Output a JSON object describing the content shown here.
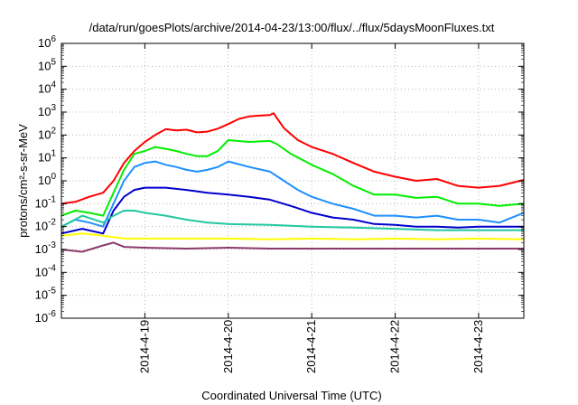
{
  "chart_data": {
    "type": "line",
    "title": "/data/run/goesPlots/archive/2014-04-23/13:00/flux/../flux/5daysMoonFluxes.txt",
    "xlabel": "Coordinated Universal Time (UTC)",
    "ylabel": "protons/cm²-s-sr-MeV",
    "y_scale": "log",
    "ylim": [
      "1e-6",
      "1e6"
    ],
    "y_ticks": [
      {
        "value": "1e-6",
        "base": "10",
        "exp": "-6"
      },
      {
        "value": "1e-5",
        "base": "10",
        "exp": "-5"
      },
      {
        "value": "1e-4",
        "base": "10",
        "exp": "-4"
      },
      {
        "value": "1e-3",
        "base": "10",
        "exp": "-3"
      },
      {
        "value": "1e-2",
        "base": "10",
        "exp": "-2"
      },
      {
        "value": "1e-1",
        "base": "10",
        "exp": "-1"
      },
      {
        "value": "1e0",
        "base": "10",
        "exp": "0"
      },
      {
        "value": "1e1",
        "base": "10",
        "exp": "1"
      },
      {
        "value": "1e2",
        "base": "10",
        "exp": "2"
      },
      {
        "value": "1e3",
        "base": "10",
        "exp": "3"
      },
      {
        "value": "1e4",
        "base": "10",
        "exp": "4"
      },
      {
        "value": "1e5",
        "base": "10",
        "exp": "5"
      },
      {
        "value": "1e6",
        "base": "10",
        "exp": "6"
      }
    ],
    "xlim": [
      "2014-04-18 00:00",
      "2014-04-23 13:00"
    ],
    "x_ticks": [
      "2014-4-19",
      "2014-4-20",
      "2014-4-21",
      "2014-4-22",
      "2014-4-23"
    ],
    "grid": true,
    "series": [
      {
        "color": "#ff0000",
        "points": [
          [
            "2014-04-18 00:00",
            "1e-1"
          ],
          [
            "2014-04-18 04:00",
            "1.2e-1"
          ],
          [
            "2014-04-18 08:00",
            "2e-1"
          ],
          [
            "2014-04-18 12:00",
            "3e-1"
          ],
          [
            "2014-04-18 15:00",
            "1e0"
          ],
          [
            "2014-04-18 18:00",
            "6e0"
          ],
          [
            "2014-04-18 21:00",
            "2e1"
          ],
          [
            "2014-04-19 00:00",
            "5e1"
          ],
          [
            "2014-04-19 03:00",
            "1e2"
          ],
          [
            "2014-04-19 06:00",
            "1.8e2"
          ],
          [
            "2014-04-19 09:00",
            "1.6e2"
          ],
          [
            "2014-04-19 12:00",
            "1.7e2"
          ],
          [
            "2014-04-19 15:00",
            "1.3e2"
          ],
          [
            "2014-04-19 18:00",
            "1.4e2"
          ],
          [
            "2014-04-19 21:00",
            "1.9e2"
          ],
          [
            "2014-04-20 00:00",
            "3e2"
          ],
          [
            "2014-04-20 03:00",
            "5e2"
          ],
          [
            "2014-04-20 06:00",
            "6.5e2"
          ],
          [
            "2014-04-20 09:00",
            "7e2"
          ],
          [
            "2014-04-20 12:00",
            "7.5e2"
          ],
          [
            "2014-04-20 13:00",
            "9e2"
          ],
          [
            "2014-04-20 16:00",
            "2e2"
          ],
          [
            "2014-04-20 20:00",
            "6e1"
          ],
          [
            "2014-04-21 00:00",
            "3e1"
          ],
          [
            "2014-04-21 06:00",
            "1.5e1"
          ],
          [
            "2014-04-21 12:00",
            "6e0"
          ],
          [
            "2014-04-21 18:00",
            "2.5e0"
          ],
          [
            "2014-04-22 00:00",
            "1.5e0"
          ],
          [
            "2014-04-22 06:00",
            "1e0"
          ],
          [
            "2014-04-22 12:00",
            "1.2e0"
          ],
          [
            "2014-04-22 18:00",
            "6e-1"
          ],
          [
            "2014-04-23 00:00",
            "5e-1"
          ],
          [
            "2014-04-23 06:00",
            "6e-1"
          ],
          [
            "2014-04-23 13:00",
            "1.1e0"
          ]
        ]
      },
      {
        "color": "#00ee00",
        "points": [
          [
            "2014-04-18 00:00",
            "3e-2"
          ],
          [
            "2014-04-18 04:00",
            "5e-2"
          ],
          [
            "2014-04-18 08:00",
            "4e-2"
          ],
          [
            "2014-04-18 12:00",
            "3e-2"
          ],
          [
            "2014-04-18 15:00",
            "3e-1"
          ],
          [
            "2014-04-18 18:00",
            "3e0"
          ],
          [
            "2014-04-18 21:00",
            "1.5e1"
          ],
          [
            "2014-04-19 00:00",
            "2e1"
          ],
          [
            "2014-04-19 03:00",
            "3e1"
          ],
          [
            "2014-04-19 06:00",
            "2.5e1"
          ],
          [
            "2014-04-19 09:00",
            "2e1"
          ],
          [
            "2014-04-19 12:00",
            "1.5e1"
          ],
          [
            "2014-04-19 15:00",
            "1.2e1"
          ],
          [
            "2014-04-19 18:00",
            "1.2e1"
          ],
          [
            "2014-04-19 21:00",
            "2e1"
          ],
          [
            "2014-04-20 00:00",
            "6e1"
          ],
          [
            "2014-04-20 06:00",
            "5e1"
          ],
          [
            "2014-04-20 12:00",
            "5.5e1"
          ],
          [
            "2014-04-20 14:00",
            "4e1"
          ],
          [
            "2014-04-20 18:00",
            "1.5e1"
          ],
          [
            "2014-04-21 00:00",
            "5e0"
          ],
          [
            "2014-04-21 06:00",
            "2e0"
          ],
          [
            "2014-04-21 12:00",
            "6e-1"
          ],
          [
            "2014-04-21 18:00",
            "2.5e-1"
          ],
          [
            "2014-04-22 00:00",
            "2.5e-1"
          ],
          [
            "2014-04-22 06:00",
            "1.8e-1"
          ],
          [
            "2014-04-22 12:00",
            "2e-1"
          ],
          [
            "2014-04-22 18:00",
            "1e-1"
          ],
          [
            "2014-04-23 00:00",
            "1e-1"
          ],
          [
            "2014-04-23 06:00",
            "8e-2"
          ],
          [
            "2014-04-23 13:00",
            "1e-1"
          ]
        ]
      },
      {
        "color": "#1e90ff",
        "points": [
          [
            "2014-04-18 00:00",
            "1e-2"
          ],
          [
            "2014-04-18 04:00",
            "2e-2"
          ],
          [
            "2014-04-18 08:00",
            "1.5e-2"
          ],
          [
            "2014-04-18 12:00",
            "1e-2"
          ],
          [
            "2014-04-18 15:00",
            "1e-1"
          ],
          [
            "2014-04-18 18:00",
            "1e0"
          ],
          [
            "2014-04-18 21:00",
            "4e0"
          ],
          [
            "2014-04-19 00:00",
            "6e0"
          ],
          [
            "2014-04-19 03:00",
            "7e0"
          ],
          [
            "2014-04-19 06:00",
            "5e0"
          ],
          [
            "2014-04-19 09:00",
            "4e0"
          ],
          [
            "2014-04-19 12:00",
            "3e0"
          ],
          [
            "2014-04-19 15:00",
            "2.5e0"
          ],
          [
            "2014-04-19 18:00",
            "3e0"
          ],
          [
            "2014-04-19 21:00",
            "4e0"
          ],
          [
            "2014-04-20 00:00",
            "7e0"
          ],
          [
            "2014-04-20 06:00",
            "4e0"
          ],
          [
            "2014-04-20 12:00",
            "2.5e0"
          ],
          [
            "2014-04-20 16:00",
            "1e0"
          ],
          [
            "2014-04-20 20:00",
            "4e-1"
          ],
          [
            "2014-04-21 00:00",
            "2e-1"
          ],
          [
            "2014-04-21 06:00",
            "1e-1"
          ],
          [
            "2014-04-21 12:00",
            "6e-2"
          ],
          [
            "2014-04-21 18:00",
            "3e-2"
          ],
          [
            "2014-04-22 00:00",
            "3e-2"
          ],
          [
            "2014-04-22 06:00",
            "2.5e-2"
          ],
          [
            "2014-04-22 12:00",
            "3e-2"
          ],
          [
            "2014-04-22 18:00",
            "2e-2"
          ],
          [
            "2014-04-23 00:00",
            "2e-2"
          ],
          [
            "2014-04-23 06:00",
            "1.5e-2"
          ],
          [
            "2014-04-23 13:00",
            "4e-2"
          ]
        ]
      },
      {
        "color": "#0000cc",
        "points": [
          [
            "2014-04-18 00:00",
            "5e-3"
          ],
          [
            "2014-04-18 06:00",
            "8e-3"
          ],
          [
            "2014-04-18 12:00",
            "5e-3"
          ],
          [
            "2014-04-18 15:00",
            "5e-2"
          ],
          [
            "2014-04-18 18:00",
            "2e-1"
          ],
          [
            "2014-04-18 21:00",
            "4e-1"
          ],
          [
            "2014-04-19 00:00",
            "5e-1"
          ],
          [
            "2014-04-19 06:00",
            "5e-1"
          ],
          [
            "2014-04-19 12:00",
            "4e-1"
          ],
          [
            "2014-04-19 18:00",
            "3e-1"
          ],
          [
            "2014-04-20 00:00",
            "2.5e-1"
          ],
          [
            "2014-04-20 06:00",
            "2e-1"
          ],
          [
            "2014-04-20 12:00",
            "1.5e-1"
          ],
          [
            "2014-04-20 18:00",
            "8e-2"
          ],
          [
            "2014-04-21 00:00",
            "4e-2"
          ],
          [
            "2014-04-21 06:00",
            "2.5e-2"
          ],
          [
            "2014-04-21 12:00",
            "2e-2"
          ],
          [
            "2014-04-21 18:00",
            "1.3e-2"
          ],
          [
            "2014-04-22 00:00",
            "1.2e-2"
          ],
          [
            "2014-04-22 06:00",
            "1e-2"
          ],
          [
            "2014-04-22 12:00",
            "1e-2"
          ],
          [
            "2014-04-22 18:00",
            "9e-3"
          ],
          [
            "2014-04-23 00:00",
            "1e-2"
          ],
          [
            "2014-04-23 06:00",
            "1e-2"
          ],
          [
            "2014-04-23 13:00",
            "1e-2"
          ]
        ]
      },
      {
        "color": "#20c8a0",
        "points": [
          [
            "2014-04-18 00:00",
            "1e-2"
          ],
          [
            "2014-04-18 06:00",
            "3e-2"
          ],
          [
            "2014-04-18 12:00",
            "1.5e-2"
          ],
          [
            "2014-04-18 15:00",
            "3e-2"
          ],
          [
            "2014-04-18 18:00",
            "5e-2"
          ],
          [
            "2014-04-18 21:00",
            "5e-2"
          ],
          [
            "2014-04-19 00:00",
            "4e-2"
          ],
          [
            "2014-04-19 06:00",
            "3e-2"
          ],
          [
            "2014-04-19 12:00",
            "2e-2"
          ],
          [
            "2014-04-19 18:00",
            "1.5e-2"
          ],
          [
            "2014-04-20 00:00",
            "1.3e-2"
          ],
          [
            "2014-04-20 12:00",
            "1.2e-2"
          ],
          [
            "2014-04-21 00:00",
            "1e-2"
          ],
          [
            "2014-04-21 12:00",
            "9e-3"
          ],
          [
            "2014-04-22 00:00",
            "8e-3"
          ],
          [
            "2014-04-22 12:00",
            "7e-3"
          ],
          [
            "2014-04-23 00:00",
            "7e-3"
          ],
          [
            "2014-04-23 13:00",
            "7e-3"
          ]
        ]
      },
      {
        "color": "#ffff00",
        "points": [
          [
            "2014-04-18 00:00",
            "4e-3"
          ],
          [
            "2014-04-18 06:00",
            "5e-3"
          ],
          [
            "2014-04-18 12:00",
            "4e-3"
          ],
          [
            "2014-04-18 18:00",
            "3e-3"
          ],
          [
            "2014-04-19 00:00",
            "3e-3"
          ],
          [
            "2014-04-19 12:00",
            "3e-3"
          ],
          [
            "2014-04-20 00:00",
            "3e-3"
          ],
          [
            "2014-04-20 12:00",
            "2.8e-3"
          ],
          [
            "2014-04-21 00:00",
            "3e-3"
          ],
          [
            "2014-04-21 12:00",
            "2.8e-3"
          ],
          [
            "2014-04-22 00:00",
            "3e-3"
          ],
          [
            "2014-04-22 12:00",
            "2.8e-3"
          ],
          [
            "2014-04-23 00:00",
            "3e-3"
          ],
          [
            "2014-04-23 13:00",
            "2.8e-3"
          ]
        ]
      },
      {
        "color": "#8b3a6b",
        "points": [
          [
            "2014-04-18 00:00",
            "1e-3"
          ],
          [
            "2014-04-18 06:00",
            "8e-4"
          ],
          [
            "2014-04-18 12:00",
            "1.5e-3"
          ],
          [
            "2014-04-18 15:00",
            "2e-3"
          ],
          [
            "2014-04-18 18:00",
            "1.3e-3"
          ],
          [
            "2014-04-19 00:00",
            "1.2e-3"
          ],
          [
            "2014-04-19 12:00",
            "1.1e-3"
          ],
          [
            "2014-04-20 00:00",
            "1.2e-3"
          ],
          [
            "2014-04-20 12:00",
            "1.1e-3"
          ],
          [
            "2014-04-21 00:00",
            "1.1e-3"
          ],
          [
            "2014-04-21 12:00",
            "1.1e-3"
          ],
          [
            "2014-04-22 00:00",
            "1.1e-3"
          ],
          [
            "2014-04-22 12:00",
            "1.1e-3"
          ],
          [
            "2014-04-23 00:00",
            "1.1e-3"
          ],
          [
            "2014-04-23 13:00",
            "1.1e-3"
          ]
        ]
      }
    ]
  }
}
